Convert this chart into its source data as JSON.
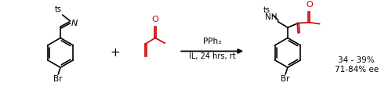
{
  "fig_width": 5.0,
  "fig_height": 1.24,
  "dpi": 100,
  "bg_color": "#ffffff",
  "black": "#000000",
  "red": "#cc0000",
  "reagent_above": "PPh₃",
  "reagent_below": "IL, 24 hrs, rt",
  "yield_line1": "34 - 39%",
  "yield_line2": "71-84% ee",
  "ts_label": "ts",
  "br_label": "Br",
  "nh_label": "NH",
  "n_label": "N",
  "o_label": "O"
}
